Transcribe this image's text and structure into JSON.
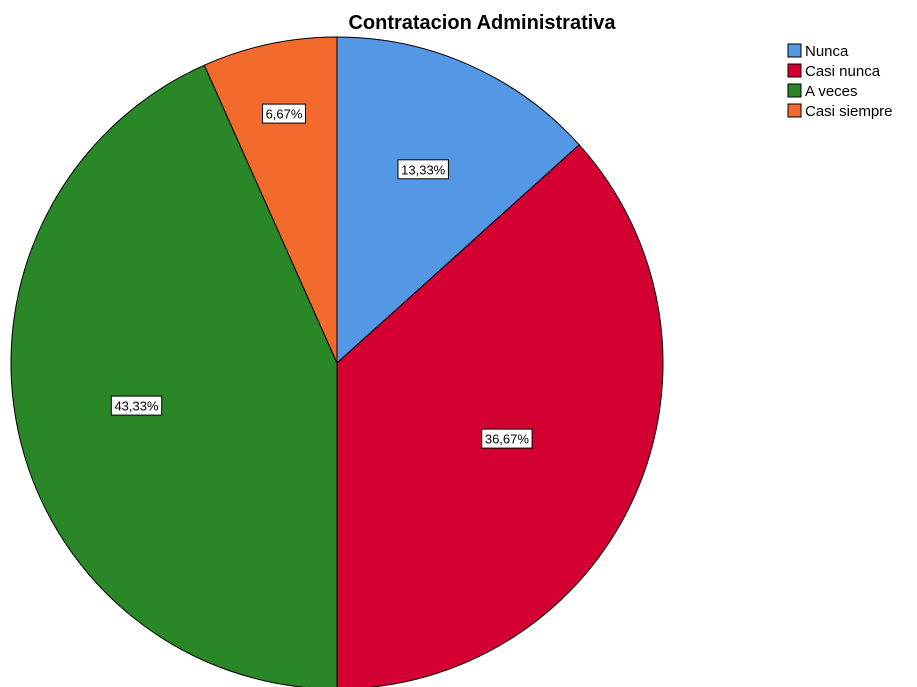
{
  "chart_data": {
    "type": "pie",
    "title": "Contratacion Administrativa",
    "start_angle_deg": 0,
    "direction": "clockwise",
    "legend_position": "top-right",
    "slices": [
      {
        "name": "Nunca",
        "value": 13.33,
        "label": "13,33%",
        "color": "#5497E5"
      },
      {
        "name": "Casi nunca",
        "value": 36.67,
        "label": "36,67%",
        "color": "#D30031"
      },
      {
        "name": "A veces",
        "value": 43.33,
        "label": "43,33%",
        "color": "#2A8728"
      },
      {
        "name": "Casi siempre",
        "value": 6.67,
        "label": "6,67%",
        "color": "#F26A2C"
      }
    ]
  }
}
